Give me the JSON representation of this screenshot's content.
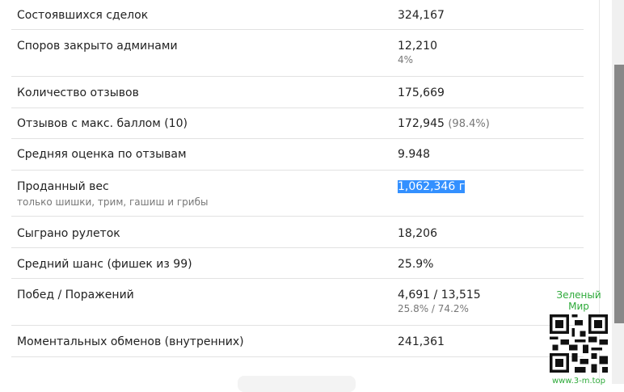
{
  "stats": [
    {
      "label": "Состоявшихся сделок",
      "value": "324,167"
    },
    {
      "label": "Споров закрыто админами",
      "value": "12,210",
      "value_sub": "4%"
    },
    {
      "label": "Количество отзывов",
      "value": "175,669"
    },
    {
      "label": "Отзывов с макс. баллом (10)",
      "value": "172,945",
      "value_extra": "(98.4%)"
    },
    {
      "label": "Средняя оценка по отзывам",
      "value": "9.948"
    },
    {
      "label": "Проданный вес",
      "label_sub": "только шишки, трим, гашиш и грибы",
      "value": "1,062,346 г"
    },
    {
      "label": "Сыграно рулеток",
      "value": "18,206"
    },
    {
      "label": "Средний шанс (фишек из 99)",
      "value": "25.9%"
    },
    {
      "label": "Побед / Поражений",
      "value": "4,691 / 13,515",
      "value_sub": "25.8% / 74.2%"
    },
    {
      "label": "Моментальных обменов (внутренних)",
      "value": "241,361"
    }
  ],
  "watermark": {
    "title": "Зеленый Мир",
    "url": "www.3-m.top"
  },
  "colors": {
    "selection": "#3390ff",
    "watermark": "#2eaa3a",
    "scroll_thumb": "#888888"
  }
}
